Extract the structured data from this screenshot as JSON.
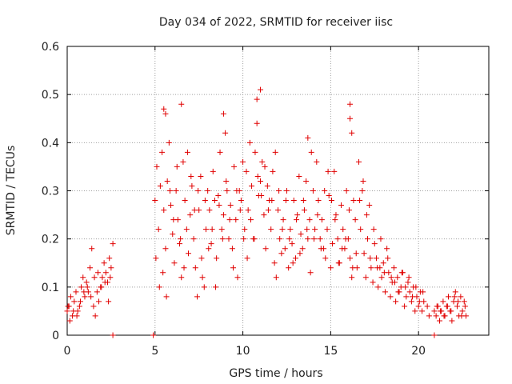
{
  "chart_data": {
    "type": "scatter",
    "title": "Day 034 of 2022, SRMTID for receiver iisc",
    "xlabel": "GPS time / hours",
    "ylabel": "SRMTID / TECUs",
    "xlim": [
      0,
      24
    ],
    "ylim": [
      0,
      0.6
    ],
    "xticks": [
      0,
      5,
      10,
      15,
      20
    ],
    "xtick_labels": [
      "0",
      "5",
      "10",
      "15",
      "20"
    ],
    "yticks": [
      0,
      0.1,
      0.2,
      0.3,
      0.4,
      0.5,
      0.6
    ],
    "ytick_labels": [
      "0",
      "0.1",
      "0.2",
      "0.3",
      "0.4",
      "0.5",
      "0.6"
    ],
    "grid": true,
    "marker": "plus",
    "color": "#e00000",
    "series": [
      {
        "name": "SRMTID",
        "x": [
          0.0,
          0.1,
          0.2,
          0.3,
          0.4,
          0.5,
          0.6,
          0.7,
          0.8,
          0.9,
          1.0,
          1.1,
          1.2,
          1.3,
          1.4,
          1.5,
          1.6,
          1.7,
          1.8,
          1.9,
          2.0,
          2.1,
          2.2,
          2.3,
          2.4,
          2.5,
          2.6,
          5.0,
          5.1,
          5.2,
          5.3,
          5.4,
          5.5,
          5.6,
          5.7,
          5.8,
          5.9,
          6.0,
          6.1,
          6.2,
          6.3,
          6.4,
          6.5,
          6.6,
          6.7,
          6.8,
          6.9,
          7.0,
          7.1,
          7.2,
          7.3,
          7.4,
          7.5,
          7.6,
          7.7,
          7.8,
          7.9,
          8.0,
          8.1,
          8.2,
          8.3,
          8.4,
          8.5,
          8.6,
          8.7,
          8.8,
          8.9,
          9.0,
          9.1,
          9.2,
          9.3,
          9.4,
          9.5,
          9.6,
          9.7,
          9.8,
          9.9,
          10.0,
          10.1,
          10.2,
          10.3,
          10.4,
          10.5,
          10.6,
          10.7,
          10.8,
          10.9,
          11.0,
          11.1,
          11.2,
          11.3,
          11.4,
          11.5,
          11.6,
          11.7,
          11.8,
          11.9,
          12.0,
          12.1,
          12.2,
          12.3,
          12.4,
          12.5,
          12.6,
          12.7,
          12.8,
          12.9,
          13.0,
          13.1,
          13.2,
          13.3,
          13.4,
          13.5,
          13.6,
          13.7,
          13.8,
          13.9,
          14.0,
          14.1,
          14.2,
          14.3,
          14.4,
          14.5,
          14.6,
          14.7,
          14.8,
          14.9,
          15.0,
          15.1,
          15.2,
          15.3,
          15.4,
          15.5,
          15.6,
          15.7,
          15.8,
          15.9,
          16.0,
          16.1,
          16.2,
          16.3,
          16.4,
          16.5,
          16.6,
          16.7,
          16.8,
          16.9,
          17.0,
          17.1,
          17.2,
          17.3,
          17.4,
          17.5,
          17.6,
          17.7,
          17.8,
          17.9,
          18.0,
          18.1,
          18.2,
          18.3,
          18.4,
          18.5,
          18.6,
          18.7,
          18.8,
          18.9,
          19.0,
          19.1,
          19.2,
          19.3,
          19.4,
          19.5,
          19.6,
          19.7,
          19.8,
          19.9,
          20.0,
          20.1,
          20.2,
          20.3,
          20.5,
          20.6,
          20.9,
          21.0,
          21.1,
          21.2,
          21.3,
          21.4,
          21.5,
          21.6,
          21.7,
          21.8,
          21.9,
          22.0,
          22.1,
          22.2,
          22.3,
          22.4,
          22.5,
          22.6,
          22.7,
          0.05,
          0.15,
          0.35,
          0.55,
          0.75,
          0.95,
          1.15,
          1.35,
          1.55,
          1.75,
          1.95,
          2.15,
          2.35,
          2.45,
          5.05,
          5.25,
          5.45,
          5.65,
          5.85,
          6.05,
          6.25,
          6.45,
          6.65,
          6.85,
          7.05,
          7.25,
          7.45,
          7.65,
          7.85,
          8.05,
          8.25,
          8.45,
          8.65,
          8.85,
          9.05,
          9.25,
          9.45,
          9.65,
          9.85,
          10.05,
          10.25,
          10.45,
          10.65,
          10.85,
          11.05,
          11.25,
          11.45,
          11.65,
          11.85,
          12.05,
          12.25,
          12.45,
          12.65,
          12.85,
          13.05,
          13.25,
          13.45,
          13.65,
          13.85,
          14.05,
          14.25,
          14.45,
          14.65,
          14.85,
          15.05,
          15.25,
          15.45,
          15.65,
          15.85,
          16.05,
          16.25,
          16.45,
          16.65,
          16.85,
          17.05,
          17.25,
          17.45,
          17.65,
          17.85,
          18.05,
          18.25,
          18.45,
          18.65,
          18.85,
          19.05,
          19.25,
          19.45,
          19.65,
          19.85,
          20.05,
          20.25,
          21.05,
          21.25,
          21.45,
          21.65,
          21.85,
          22.05,
          22.25,
          22.45,
          22.65,
          5.5,
          5.6,
          6.5,
          8.9,
          10.8,
          11.0,
          13.7,
          16.1,
          16.1,
          16.2,
          2.6,
          4.9,
          20.9
        ],
        "y": [
          0.05,
          0.06,
          0.08,
          0.04,
          0.07,
          0.09,
          0.05,
          0.06,
          0.1,
          0.12,
          0.08,
          0.11,
          0.09,
          0.14,
          0.18,
          0.06,
          0.04,
          0.09,
          0.07,
          0.1,
          0.12,
          0.15,
          0.13,
          0.11,
          0.16,
          0.14,
          0.19,
          0.28,
          0.35,
          0.22,
          0.31,
          0.38,
          0.26,
          0.18,
          0.32,
          0.4,
          0.27,
          0.21,
          0.15,
          0.3,
          0.24,
          0.19,
          0.12,
          0.36,
          0.28,
          0.22,
          0.17,
          0.25,
          0.31,
          0.2,
          0.14,
          0.08,
          0.26,
          0.33,
          0.12,
          0.1,
          0.22,
          0.3,
          0.26,
          0.19,
          0.34,
          0.28,
          0.16,
          0.29,
          0.38,
          0.22,
          0.25,
          0.42,
          0.3,
          0.2,
          0.27,
          0.18,
          0.35,
          0.24,
          0.12,
          0.3,
          0.28,
          0.36,
          0.22,
          0.34,
          0.26,
          0.4,
          0.31,
          0.2,
          0.38,
          0.44,
          0.29,
          0.32,
          0.36,
          0.25,
          0.18,
          0.31,
          0.28,
          0.22,
          0.34,
          0.15,
          0.12,
          0.26,
          0.2,
          0.17,
          0.24,
          0.18,
          0.3,
          0.14,
          0.22,
          0.19,
          0.28,
          0.16,
          0.25,
          0.33,
          0.21,
          0.18,
          0.26,
          0.32,
          0.2,
          0.24,
          0.38,
          0.3,
          0.22,
          0.36,
          0.28,
          0.2,
          0.24,
          0.18,
          0.16,
          0.22,
          0.29,
          0.14,
          0.19,
          0.34,
          0.25,
          0.2,
          0.15,
          0.27,
          0.22,
          0.18,
          0.3,
          0.2,
          0.16,
          0.12,
          0.28,
          0.24,
          0.14,
          0.36,
          0.22,
          0.3,
          0.17,
          0.12,
          0.2,
          0.27,
          0.14,
          0.11,
          0.19,
          0.16,
          0.1,
          0.14,
          0.12,
          0.15,
          0.09,
          0.18,
          0.13,
          0.08,
          0.11,
          0.14,
          0.07,
          0.12,
          0.09,
          0.1,
          0.13,
          0.06,
          0.08,
          0.11,
          0.09,
          0.07,
          0.1,
          0.05,
          0.08,
          0.06,
          0.09,
          0.05,
          0.07,
          0.06,
          0.04,
          0.05,
          0.04,
          0.06,
          0.03,
          0.05,
          0.07,
          0.04,
          0.06,
          0.08,
          0.05,
          0.03,
          0.07,
          0.09,
          0.06,
          0.04,
          0.08,
          0.05,
          0.07,
          0.04,
          0.06,
          0.03,
          0.05,
          0.04,
          0.07,
          0.09,
          0.1,
          0.08,
          0.12,
          0.13,
          0.1,
          0.11,
          0.07,
          0.12,
          0.16,
          0.1,
          0.13,
          0.08,
          0.3,
          0.24,
          0.35,
          0.2,
          0.14,
          0.38,
          0.33,
          0.26,
          0.3,
          0.16,
          0.28,
          0.18,
          0.22,
          0.1,
          0.27,
          0.2,
          0.32,
          0.24,
          0.14,
          0.3,
          0.26,
          0.2,
          0.16,
          0.24,
          0.2,
          0.33,
          0.29,
          0.35,
          0.26,
          0.28,
          0.38,
          0.3,
          0.22,
          0.28,
          0.2,
          0.15,
          0.24,
          0.17,
          0.28,
          0.22,
          0.13,
          0.2,
          0.25,
          0.18,
          0.3,
          0.34,
          0.28,
          0.24,
          0.15,
          0.18,
          0.2,
          0.26,
          0.14,
          0.17,
          0.28,
          0.32,
          0.25,
          0.16,
          0.22,
          0.14,
          0.2,
          0.13,
          0.16,
          0.12,
          0.11,
          0.09,
          0.13,
          0.1,
          0.12,
          0.08,
          0.1,
          0.07,
          0.09,
          0.06,
          0.05,
          0.04,
          0.06,
          0.05,
          0.08,
          0.07,
          0.04,
          0.06,
          0.47,
          0.46,
          0.48,
          0.46,
          0.49,
          0.51,
          0.41,
          0.45,
          0.48,
          0.42,
          0.0,
          0.0,
          0.0
        ]
      }
    ]
  }
}
